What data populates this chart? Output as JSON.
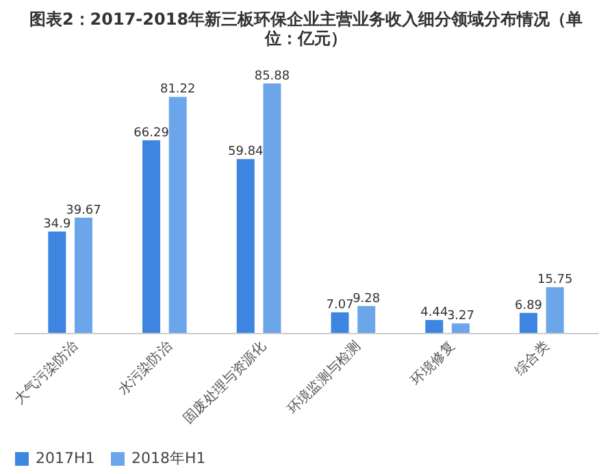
{
  "chart_data": {
    "type": "bar",
    "title": "图表2：2017-2018年新三板环保企业主营业务收入细分领域分布情况（单位：亿元）",
    "categories": [
      "大气污染防治",
      "水污染防治",
      "固废处理与资源化",
      "环境监测与检测",
      "环境修复",
      "综合类"
    ],
    "series": [
      {
        "name": "2017H1",
        "color": "#3d85e0",
        "values": [
          34.9,
          66.29,
          59.84,
          7.07,
          4.44,
          6.89
        ]
      },
      {
        "name": "2018年H1",
        "color": "#6ca6ea",
        "values": [
          39.67,
          81.22,
          85.88,
          9.28,
          3.27,
          15.75
        ]
      }
    ],
    "data_labels": true,
    "legend": "bottom",
    "grid": false
  }
}
